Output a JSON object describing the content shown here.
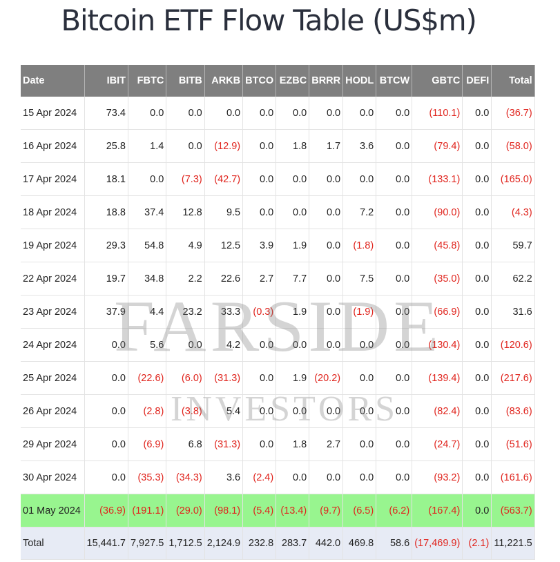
{
  "title": "Bitcoin ETF Flow Table (US$m)",
  "watermark": {
    "line1": "FARSIDE",
    "line2": "INVESTORS"
  },
  "colors": {
    "header_bg": "#7f7f7f",
    "negative": "#e0241d",
    "highlight_row": "#98f58f",
    "total_row": "#e7ebf5"
  },
  "table": {
    "headers": [
      "Date",
      "IBIT",
      "FBTC",
      "BITB",
      "ARKB",
      "BTCO",
      "EZBC",
      "BRRR",
      "HODL",
      "BTCW",
      "GBTC",
      "DEFI",
      "Total"
    ],
    "rows": [
      [
        "15 Apr 2024",
        "73.4",
        "0.0",
        "0.0",
        "0.0",
        "0.0",
        "0.0",
        "0.0",
        "0.0",
        "0.0",
        "(110.1)",
        "0.0",
        "(36.7)"
      ],
      [
        "16 Apr 2024",
        "25.8",
        "1.4",
        "0.0",
        "(12.9)",
        "0.0",
        "1.8",
        "1.7",
        "3.6",
        "0.0",
        "(79.4)",
        "0.0",
        "(58.0)"
      ],
      [
        "17 Apr 2024",
        "18.1",
        "0.0",
        "(7.3)",
        "(42.7)",
        "0.0",
        "0.0",
        "0.0",
        "0.0",
        "0.0",
        "(133.1)",
        "0.0",
        "(165.0)"
      ],
      [
        "18 Apr 2024",
        "18.8",
        "37.4",
        "12.8",
        "9.5",
        "0.0",
        "0.0",
        "0.0",
        "7.2",
        "0.0",
        "(90.0)",
        "0.0",
        "(4.3)"
      ],
      [
        "19 Apr 2024",
        "29.3",
        "54.8",
        "4.9",
        "12.5",
        "3.9",
        "1.9",
        "0.0",
        "(1.8)",
        "0.0",
        "(45.8)",
        "0.0",
        "59.7"
      ],
      [
        "22 Apr 2024",
        "19.7",
        "34.8",
        "2.2",
        "22.6",
        "2.7",
        "7.7",
        "0.0",
        "7.5",
        "0.0",
        "(35.0)",
        "0.0",
        "62.2"
      ],
      [
        "23 Apr 2024",
        "37.9",
        "4.4",
        "23.2",
        "33.3",
        "(0.3)",
        "1.9",
        "0.0",
        "(1.9)",
        "0.0",
        "(66.9)",
        "0.0",
        "31.6"
      ],
      [
        "24 Apr 2024",
        "0.0",
        "5.6",
        "0.0",
        "4.2",
        "0.0",
        "0.0",
        "0.0",
        "0.0",
        "0.0",
        "(130.4)",
        "0.0",
        "(120.6)"
      ],
      [
        "25 Apr 2024",
        "0.0",
        "(22.6)",
        "(6.0)",
        "(31.3)",
        "0.0",
        "1.9",
        "(20.2)",
        "0.0",
        "0.0",
        "(139.4)",
        "0.0",
        "(217.6)"
      ],
      [
        "26 Apr 2024",
        "0.0",
        "(2.8)",
        "(3.8)",
        "5.4",
        "0.0",
        "0.0",
        "0.0",
        "0.0",
        "0.0",
        "(82.4)",
        "0.0",
        "(83.6)"
      ],
      [
        "29 Apr 2024",
        "0.0",
        "(6.9)",
        "6.8",
        "(31.3)",
        "0.0",
        "1.8",
        "2.7",
        "0.0",
        "0.0",
        "(24.7)",
        "0.0",
        "(51.6)"
      ],
      [
        "30 Apr 2024",
        "0.0",
        "(35.3)",
        "(34.3)",
        "3.6",
        "(2.4)",
        "0.0",
        "0.0",
        "0.0",
        "0.0",
        "(93.2)",
        "0.0",
        "(161.6)"
      ],
      [
        "01 May 2024",
        "(36.9)",
        "(191.1)",
        "(29.0)",
        "(98.1)",
        "(5.4)",
        "(13.4)",
        "(9.7)",
        "(6.5)",
        "(6.2)",
        "(167.4)",
        "0.0",
        "(563.7)"
      ]
    ],
    "highlight_row_index": 12,
    "total": [
      "Total",
      "15,441.7",
      "7,927.5",
      "1,712.5",
      "2,124.9",
      "232.8",
      "283.7",
      "442.0",
      "469.8",
      "58.6",
      "(17,469.9)",
      "(2.1)",
      "11,221.5"
    ]
  }
}
